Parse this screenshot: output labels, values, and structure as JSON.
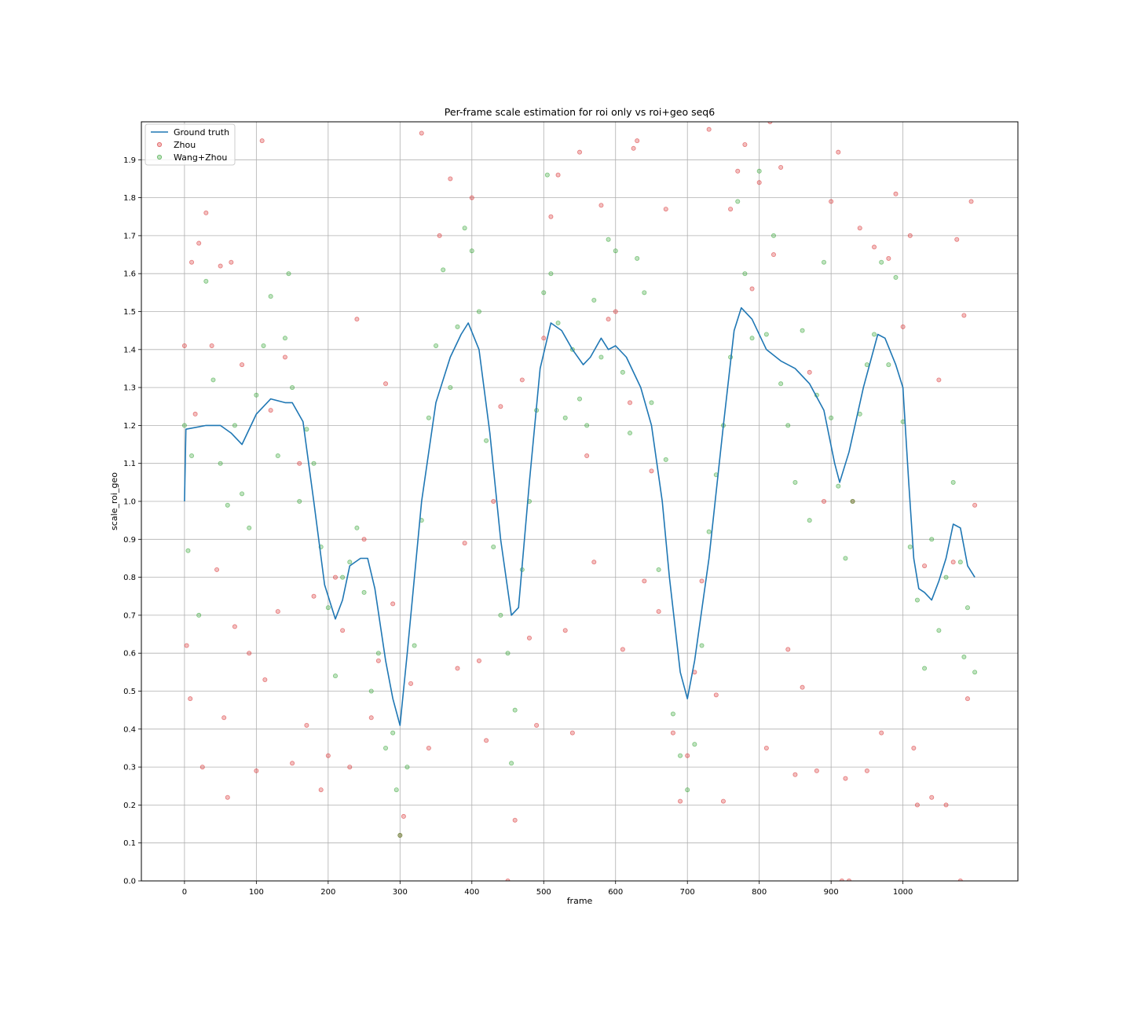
{
  "chart_data": {
    "type": "scatter",
    "title": "Per-frame scale estimation for roi only vs roi+geo seq6",
    "xlabel": "frame",
    "ylabel": "scale_roi_geo",
    "xlim": [
      -60,
      1160
    ],
    "ylim": [
      0.0,
      2.0
    ],
    "x_ticks": [
      0,
      100,
      200,
      300,
      400,
      500,
      600,
      700,
      800,
      900,
      1000
    ],
    "x_tick_labels": [
      "0",
      "100",
      "200",
      "300",
      "400",
      "500",
      "600",
      "700",
      "800",
      "900",
      "1000"
    ],
    "y_ticks": [
      0.0,
      0.1,
      0.2,
      0.3,
      0.4,
      0.5,
      0.6,
      0.7,
      0.8,
      0.9,
      1.0,
      1.1,
      1.2,
      1.3,
      1.4,
      1.5,
      1.6,
      1.7,
      1.8,
      1.9
    ],
    "y_tick_labels": [
      "0.0",
      "0.1",
      "0.2",
      "0.3",
      "0.4",
      "0.5",
      "0.6",
      "0.7",
      "0.8",
      "0.9",
      "1.0",
      "1.1",
      "1.2",
      "1.3",
      "1.4",
      "1.5",
      "1.6",
      "1.7",
      "1.8",
      "1.9"
    ],
    "grid": true,
    "legend_position": "top-left",
    "series": [
      {
        "name": "Ground truth",
        "kind": "line",
        "color": "#1f77b4",
        "x": [
          0,
          2,
          30,
          50,
          65,
          80,
          100,
          120,
          140,
          150,
          165,
          180,
          195,
          210,
          220,
          230,
          245,
          255,
          265,
          280,
          290,
          300,
          310,
          330,
          350,
          370,
          385,
          395,
          410,
          425,
          440,
          455,
          465,
          480,
          495,
          510,
          525,
          540,
          555,
          565,
          580,
          590,
          600,
          615,
          635,
          650,
          665,
          675,
          690,
          700,
          710,
          730,
          750,
          765,
          775,
          790,
          810,
          830,
          850,
          870,
          890,
          905,
          912,
          925,
          945,
          965,
          975,
          990,
          1000,
          1008,
          1015,
          1022,
          1030,
          1040,
          1050,
          1060,
          1070,
          1080,
          1090,
          1100
        ],
        "y": [
          1.0,
          1.19,
          1.2,
          1.2,
          1.18,
          1.15,
          1.23,
          1.27,
          1.26,
          1.26,
          1.21,
          1.0,
          0.78,
          0.69,
          0.74,
          0.83,
          0.85,
          0.85,
          0.77,
          0.58,
          0.48,
          0.41,
          0.6,
          1.0,
          1.26,
          1.38,
          1.44,
          1.47,
          1.4,
          1.18,
          0.9,
          0.7,
          0.72,
          1.05,
          1.35,
          1.47,
          1.45,
          1.4,
          1.36,
          1.38,
          1.43,
          1.4,
          1.41,
          1.38,
          1.3,
          1.2,
          1.0,
          0.8,
          0.55,
          0.48,
          0.58,
          0.85,
          1.2,
          1.45,
          1.51,
          1.48,
          1.4,
          1.37,
          1.35,
          1.31,
          1.24,
          1.1,
          1.05,
          1.13,
          1.3,
          1.44,
          1.43,
          1.36,
          1.3,
          1.05,
          0.85,
          0.77,
          0.76,
          0.74,
          0.79,
          0.85,
          0.94,
          0.93,
          0.83,
          0.8
        ]
      },
      {
        "name": "Zhou",
        "kind": "scatter",
        "color": "#d62728",
        "points": [
          [
            0,
            1.41
          ],
          [
            3,
            0.62
          ],
          [
            8,
            0.48
          ],
          [
            10,
            1.63
          ],
          [
            15,
            1.23
          ],
          [
            20,
            1.68
          ],
          [
            25,
            0.3
          ],
          [
            30,
            1.76
          ],
          [
            38,
            1.41
          ],
          [
            45,
            0.82
          ],
          [
            50,
            1.62
          ],
          [
            55,
            0.43
          ],
          [
            60,
            0.22
          ],
          [
            65,
            1.63
          ],
          [
            70,
            0.67
          ],
          [
            80,
            1.36
          ],
          [
            90,
            0.6
          ],
          [
            100,
            0.29
          ],
          [
            108,
            1.95
          ],
          [
            112,
            0.53
          ],
          [
            120,
            1.24
          ],
          [
            130,
            0.71
          ],
          [
            140,
            1.38
          ],
          [
            150,
            0.31
          ],
          [
            160,
            1.1
          ],
          [
            170,
            0.41
          ],
          [
            180,
            0.75
          ],
          [
            190,
            0.24
          ],
          [
            200,
            0.33
          ],
          [
            210,
            0.8
          ],
          [
            220,
            0.66
          ],
          [
            230,
            0.3
          ],
          [
            240,
            1.48
          ],
          [
            250,
            0.9
          ],
          [
            260,
            0.43
          ],
          [
            270,
            0.58
          ],
          [
            280,
            1.31
          ],
          [
            290,
            0.73
          ],
          [
            300,
            0.12
          ],
          [
            305,
            0.17
          ],
          [
            315,
            0.52
          ],
          [
            330,
            1.97
          ],
          [
            340,
            0.35
          ],
          [
            355,
            1.7
          ],
          [
            370,
            1.85
          ],
          [
            380,
            0.56
          ],
          [
            390,
            0.89
          ],
          [
            400,
            1.8
          ],
          [
            410,
            0.58
          ],
          [
            420,
            0.37
          ],
          [
            430,
            1.0
          ],
          [
            440,
            1.25
          ],
          [
            450,
            0.0
          ],
          [
            460,
            0.16
          ],
          [
            470,
            1.32
          ],
          [
            480,
            0.64
          ],
          [
            490,
            0.41
          ],
          [
            500,
            1.43
          ],
          [
            510,
            1.75
          ],
          [
            520,
            1.86
          ],
          [
            530,
            0.66
          ],
          [
            540,
            0.39
          ],
          [
            550,
            1.92
          ],
          [
            560,
            1.12
          ],
          [
            570,
            0.84
          ],
          [
            580,
            1.78
          ],
          [
            590,
            1.48
          ],
          [
            600,
            1.5
          ],
          [
            610,
            0.61
          ],
          [
            620,
            1.26
          ],
          [
            625,
            1.93
          ],
          [
            630,
            1.95
          ],
          [
            640,
            0.79
          ],
          [
            650,
            1.08
          ],
          [
            660,
            0.71
          ],
          [
            670,
            1.77
          ],
          [
            680,
            0.39
          ],
          [
            690,
            0.21
          ],
          [
            700,
            0.33
          ],
          [
            710,
            0.55
          ],
          [
            720,
            0.79
          ],
          [
            730,
            1.98
          ],
          [
            740,
            0.49
          ],
          [
            750,
            0.21
          ],
          [
            760,
            1.77
          ],
          [
            770,
            1.87
          ],
          [
            780,
            1.94
          ],
          [
            790,
            1.56
          ],
          [
            800,
            1.84
          ],
          [
            810,
            0.35
          ],
          [
            815,
            2.0
          ],
          [
            820,
            1.65
          ],
          [
            830,
            1.88
          ],
          [
            840,
            0.61
          ],
          [
            850,
            0.28
          ],
          [
            860,
            0.51
          ],
          [
            870,
            1.34
          ],
          [
            880,
            0.29
          ],
          [
            890,
            1.0
          ],
          [
            900,
            1.79
          ],
          [
            910,
            1.92
          ],
          [
            915,
            0.0
          ],
          [
            920,
            0.27
          ],
          [
            925,
            0.0
          ],
          [
            930,
            1.0
          ],
          [
            940,
            1.72
          ],
          [
            950,
            0.29
          ],
          [
            960,
            1.67
          ],
          [
            970,
            0.39
          ],
          [
            980,
            1.64
          ],
          [
            990,
            1.81
          ],
          [
            1000,
            1.46
          ],
          [
            1010,
            1.7
          ],
          [
            1015,
            0.35
          ],
          [
            1020,
            0.2
          ],
          [
            1030,
            0.83
          ],
          [
            1040,
            0.22
          ],
          [
            1050,
            1.32
          ],
          [
            1060,
            0.2
          ],
          [
            1070,
            0.84
          ],
          [
            1075,
            1.69
          ],
          [
            1080,
            0.0
          ],
          [
            1085,
            1.49
          ],
          [
            1090,
            0.48
          ],
          [
            1095,
            1.79
          ],
          [
            1100,
            0.99
          ]
        ]
      },
      {
        "name": "Wang+Zhou",
        "kind": "scatter",
        "color": "#2ca02c",
        "points": [
          [
            0,
            1.2
          ],
          [
            5,
            0.87
          ],
          [
            10,
            1.12
          ],
          [
            20,
            0.7
          ],
          [
            30,
            1.58
          ],
          [
            40,
            1.32
          ],
          [
            50,
            1.1
          ],
          [
            60,
            0.99
          ],
          [
            70,
            1.2
          ],
          [
            80,
            1.02
          ],
          [
            90,
            0.93
          ],
          [
            100,
            1.28
          ],
          [
            110,
            1.41
          ],
          [
            120,
            1.54
          ],
          [
            130,
            1.12
          ],
          [
            140,
            1.43
          ],
          [
            145,
            1.6
          ],
          [
            150,
            1.3
          ],
          [
            160,
            1.0
          ],
          [
            170,
            1.19
          ],
          [
            180,
            1.1
          ],
          [
            190,
            0.88
          ],
          [
            200,
            0.72
          ],
          [
            210,
            0.54
          ],
          [
            220,
            0.8
          ],
          [
            230,
            0.84
          ],
          [
            240,
            0.93
          ],
          [
            250,
            0.76
          ],
          [
            260,
            0.5
          ],
          [
            270,
            0.6
          ],
          [
            280,
            0.35
          ],
          [
            290,
            0.39
          ],
          [
            295,
            0.24
          ],
          [
            300,
            0.12
          ],
          [
            310,
            0.3
          ],
          [
            320,
            0.62
          ],
          [
            330,
            0.95
          ],
          [
            340,
            1.22
          ],
          [
            350,
            1.41
          ],
          [
            360,
            1.61
          ],
          [
            370,
            1.3
          ],
          [
            380,
            1.46
          ],
          [
            390,
            1.72
          ],
          [
            400,
            1.66
          ],
          [
            410,
            1.5
          ],
          [
            420,
            1.16
          ],
          [
            430,
            0.88
          ],
          [
            440,
            0.7
          ],
          [
            450,
            0.6
          ],
          [
            455,
            0.31
          ],
          [
            460,
            0.45
          ],
          [
            470,
            0.82
          ],
          [
            480,
            1.0
          ],
          [
            490,
            1.24
          ],
          [
            500,
            1.55
          ],
          [
            505,
            1.86
          ],
          [
            510,
            1.6
          ],
          [
            520,
            1.47
          ],
          [
            530,
            1.22
          ],
          [
            540,
            1.4
          ],
          [
            550,
            1.27
          ],
          [
            560,
            1.2
          ],
          [
            570,
            1.53
          ],
          [
            580,
            1.38
          ],
          [
            590,
            1.69
          ],
          [
            600,
            1.66
          ],
          [
            610,
            1.34
          ],
          [
            620,
            1.18
          ],
          [
            630,
            1.64
          ],
          [
            640,
            1.55
          ],
          [
            650,
            1.26
          ],
          [
            660,
            0.82
          ],
          [
            670,
            1.11
          ],
          [
            680,
            0.44
          ],
          [
            690,
            0.33
          ],
          [
            700,
            0.24
          ],
          [
            710,
            0.36
          ],
          [
            720,
            0.62
          ],
          [
            730,
            0.92
          ],
          [
            740,
            1.07
          ],
          [
            750,
            1.2
          ],
          [
            760,
            1.38
          ],
          [
            770,
            1.79
          ],
          [
            780,
            1.6
          ],
          [
            790,
            1.43
          ],
          [
            800,
            1.87
          ],
          [
            810,
            1.44
          ],
          [
            820,
            1.7
          ],
          [
            830,
            1.31
          ],
          [
            840,
            1.2
          ],
          [
            850,
            1.05
          ],
          [
            860,
            1.45
          ],
          [
            870,
            0.95
          ],
          [
            880,
            1.28
          ],
          [
            890,
            1.63
          ],
          [
            900,
            1.22
          ],
          [
            910,
            1.04
          ],
          [
            920,
            0.85
          ],
          [
            930,
            1.0
          ],
          [
            940,
            1.23
          ],
          [
            950,
            1.36
          ],
          [
            960,
            1.44
          ],
          [
            970,
            1.63
          ],
          [
            980,
            1.36
          ],
          [
            990,
            1.59
          ],
          [
            1000,
            1.21
          ],
          [
            1010,
            0.88
          ],
          [
            1020,
            0.74
          ],
          [
            1030,
            0.56
          ],
          [
            1040,
            0.9
          ],
          [
            1050,
            0.66
          ],
          [
            1060,
            0.8
          ],
          [
            1070,
            1.05
          ],
          [
            1080,
            0.84
          ],
          [
            1085,
            0.59
          ],
          [
            1090,
            0.72
          ],
          [
            1100,
            0.55
          ]
        ]
      }
    ]
  }
}
